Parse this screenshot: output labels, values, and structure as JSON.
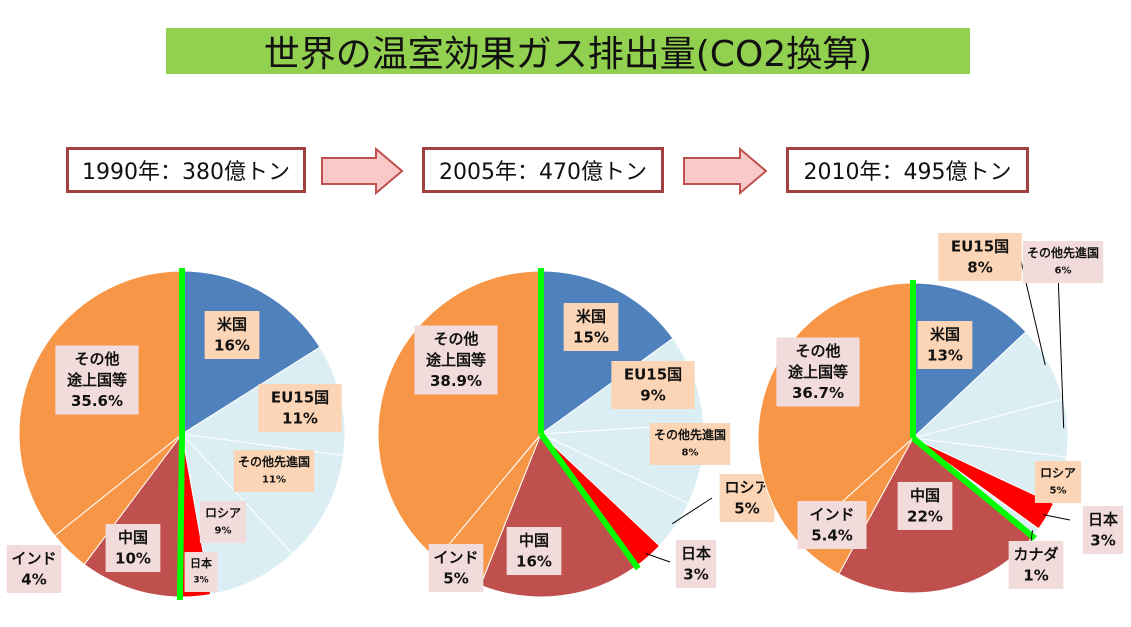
{
  "title": "世界の温室効果ガス排出量(CO2換算)",
  "colors": {
    "title_bg": "#92d050",
    "box_border": "#a04040",
    "arrow_fill": "#f9c9c9",
    "arrow_stroke": "#c0504d",
    "divider": "#00ff00",
    "label_bg": "#fbd5b5",
    "label_bg_alt": "#f2dcdb"
  },
  "periods": [
    {
      "label": "1990年：380億トン"
    },
    {
      "label": "2005年：470億トン"
    },
    {
      "label": "2010年：495億トン"
    }
  ],
  "chart_data": [
    {
      "type": "pie",
      "title": "1990年：380億トン",
      "slices": [
        {
          "name": "米国",
          "value": 16,
          "label": "16%",
          "color": "#4f81bd"
        },
        {
          "name": "EU15国",
          "value": 11,
          "label": "11%",
          "color": "#dbeef4"
        },
        {
          "name": "その他先進国",
          "value": 11,
          "label": "11%",
          "color": "#dbeef4"
        },
        {
          "name": "ロシア",
          "value": 9,
          "label": "9%",
          "color": "#dbeef4"
        },
        {
          "name": "日本",
          "value": 3,
          "label": "3%",
          "color": "#ff0000"
        },
        {
          "name": "中国",
          "value": 10,
          "label": "10%",
          "color": "#c0504d"
        },
        {
          "name": "インド",
          "value": 4,
          "label": "4%",
          "color": "#f79646"
        },
        {
          "name": "その他\n途上国等",
          "value": 35.6,
          "label": "35.6%",
          "color": "#f79646"
        }
      ]
    },
    {
      "type": "pie",
      "title": "2005年：470億トン",
      "slices": [
        {
          "name": "米国",
          "value": 15,
          "label": "15%",
          "color": "#4f81bd"
        },
        {
          "name": "EU15国",
          "value": 9,
          "label": "9%",
          "color": "#dbeef4"
        },
        {
          "name": "その他先進国",
          "value": 8,
          "label": "8%",
          "color": "#dbeef4"
        },
        {
          "name": "ロシア",
          "value": 5,
          "label": "5%",
          "color": "#dbeef4"
        },
        {
          "name": "日本",
          "value": 3,
          "label": "3%",
          "color": "#ff0000"
        },
        {
          "name": "中国",
          "value": 16,
          "label": "16%",
          "color": "#c0504d"
        },
        {
          "name": "インド",
          "value": 5,
          "label": "5%",
          "color": "#f79646"
        },
        {
          "name": "その他\n途上国等",
          "value": 38.9,
          "label": "38.9%",
          "color": "#f79646"
        }
      ]
    },
    {
      "type": "pie",
      "title": "2010年：495億トン",
      "slices": [
        {
          "name": "米国",
          "value": 13,
          "label": "13%",
          "color": "#4f81bd"
        },
        {
          "name": "EU15国",
          "value": 8,
          "label": "8%",
          "color": "#dbeef4"
        },
        {
          "name": "その他先進国",
          "value": 6,
          "label": "6%",
          "color": "#dbeef4"
        },
        {
          "name": "ロシア",
          "value": 5,
          "label": "5%",
          "color": "#dbeef4"
        },
        {
          "name": "日本",
          "value": 3,
          "label": "3%",
          "color": "#ff0000"
        },
        {
          "name": "カナダ",
          "value": 1,
          "label": "1%",
          "color": "#dbeef4"
        },
        {
          "name": "中国",
          "value": 22,
          "label": "22%",
          "color": "#c0504d"
        },
        {
          "name": "インド",
          "value": 5.4,
          "label": "5.4%",
          "color": "#f79646"
        },
        {
          "name": "その他\n途上国等",
          "value": 36.7,
          "label": "36.7%",
          "color": "#f79646"
        }
      ]
    }
  ]
}
